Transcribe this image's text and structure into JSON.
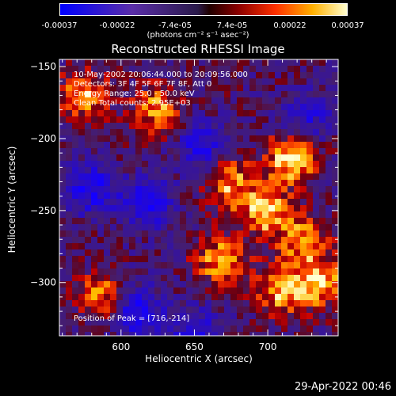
{
  "colorbar": {
    "tick_labels": [
      "-0.00037",
      "-0.00022",
      "-7.4e-05",
      "7.4e-05",
      "0.00022",
      "0.00037"
    ],
    "unit_label": "(photons cm⁻² s⁻¹ asec⁻²)",
    "range": [
      -0.00037,
      0.00037
    ],
    "colormap": "rainbow-to-hot"
  },
  "chart_data": {
    "type": "heatmap",
    "title": "Reconstructed RHESSI Image",
    "xlabel": "Heliocentric X (arcsec)",
    "ylabel": "Heliocentric Y (arcsec)",
    "xlim": [
      558,
      748
    ],
    "ylim": [
      -337,
      -145
    ],
    "x_ticks": [
      600,
      650,
      700
    ],
    "y_ticks": [
      -150,
      -200,
      -250,
      -300
    ],
    "info_lines": [
      "10-May-2002 20:06:44.000 to 20:09:56.000",
      "Detectors: 3F 4F 5F 6F 7F 8F, Att 0",
      "Energy Range: 25.0 - 50.0 keV",
      "Clean    Total counts: 2.95E+03"
    ],
    "peak_text": "Position of Peak = [716,-214]",
    "peak": [
      716,
      -214
    ],
    "bright_sources": [
      {
        "x": 716,
        "y": -214,
        "level": 1.0
      },
      {
        "x": 698,
        "y": -250,
        "level": 0.95
      },
      {
        "x": 735,
        "y": -300,
        "level": 0.85
      },
      {
        "x": 575,
        "y": -170,
        "level": 0.75
      },
      {
        "x": 625,
        "y": -180,
        "level": 0.7
      },
      {
        "x": 673,
        "y": -230,
        "level": 0.75
      },
      {
        "x": 668,
        "y": -285,
        "level": 0.8
      },
      {
        "x": 708,
        "y": -305,
        "level": 0.75
      },
      {
        "x": 588,
        "y": -310,
        "level": 0.7
      },
      {
        "x": 725,
        "y": -270,
        "level": 0.7
      }
    ],
    "dark_sources": [
      {
        "x": 610,
        "y": -320,
        "level": -0.95
      },
      {
        "x": 580,
        "y": -235,
        "level": -0.85
      },
      {
        "x": 618,
        "y": -245,
        "level": -0.85
      },
      {
        "x": 655,
        "y": -205,
        "level": -0.75
      },
      {
        "x": 650,
        "y": -335,
        "level": -0.7
      },
      {
        "x": 728,
        "y": -185,
        "level": -0.6
      }
    ]
  },
  "footer": {
    "timestamp": "29-Apr-2022 00:46"
  }
}
